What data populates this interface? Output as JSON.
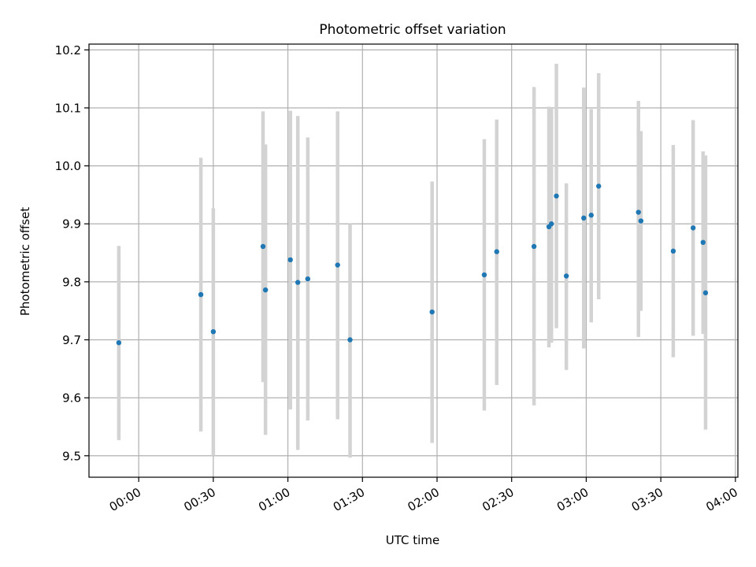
{
  "chart_data": {
    "type": "scatter",
    "title": "Photometric offset variation",
    "xlabel": "UTC time",
    "ylabel": "Photometric offset",
    "x_ticks": [
      "00:00",
      "00:30",
      "01:00",
      "01:30",
      "02:00",
      "02:30",
      "03:00",
      "03:30",
      "04:00"
    ],
    "x_tick_minutes": [
      0,
      30,
      60,
      90,
      120,
      150,
      180,
      210,
      240
    ],
    "y_ticks": [
      "9.5",
      "9.6",
      "9.7",
      "9.8",
      "9.9",
      "10.0",
      "10.1",
      "10.2"
    ],
    "y_tick_values": [
      9.5,
      9.6,
      9.7,
      9.8,
      9.9,
      10.0,
      10.1,
      10.2
    ],
    "xlim": [
      "23:40",
      "04:01"
    ],
    "ylim": [
      9.463,
      10.21
    ],
    "grid": true,
    "marker_color": "#1f77b4",
    "errorbar_color": "#d3d3d3",
    "points": [
      {
        "time": "23:52",
        "y": 9.695,
        "lo": 9.527,
        "hi": 9.862
      },
      {
        "time": "00:25",
        "y": 9.778,
        "lo": 9.542,
        "hi": 10.014
      },
      {
        "time": "00:30",
        "y": 9.714,
        "lo": 9.5,
        "hi": 9.927
      },
      {
        "time": "00:50",
        "y": 9.861,
        "lo": 9.627,
        "hi": 10.094
      },
      {
        "time": "00:51",
        "y": 9.786,
        "lo": 9.536,
        "hi": 10.037
      },
      {
        "time": "01:01",
        "y": 9.838,
        "lo": 9.58,
        "hi": 10.095
      },
      {
        "time": "01:04",
        "y": 9.799,
        "lo": 9.51,
        "hi": 10.086
      },
      {
        "time": "01:08",
        "y": 9.805,
        "lo": 9.561,
        "hi": 10.049
      },
      {
        "time": "01:20",
        "y": 9.829,
        "lo": 9.563,
        "hi": 10.094
      },
      {
        "time": "01:25",
        "y": 9.7,
        "lo": 9.497,
        "hi": 9.9
      },
      {
        "time": "01:58",
        "y": 9.748,
        "lo": 9.522,
        "hi": 9.973
      },
      {
        "time": "02:19",
        "y": 9.812,
        "lo": 9.578,
        "hi": 10.046
      },
      {
        "time": "02:24",
        "y": 9.852,
        "lo": 9.622,
        "hi": 10.08
      },
      {
        "time": "02:39",
        "y": 9.861,
        "lo": 9.587,
        "hi": 10.136
      },
      {
        "time": "02:45",
        "y": 9.895,
        "lo": 9.687,
        "hi": 10.102
      },
      {
        "time": "02:46",
        "y": 9.9,
        "lo": 9.695,
        "hi": 10.1
      },
      {
        "time": "02:48",
        "y": 9.948,
        "lo": 9.72,
        "hi": 10.176
      },
      {
        "time": "02:52",
        "y": 9.81,
        "lo": 9.648,
        "hi": 9.97
      },
      {
        "time": "02:59",
        "y": 9.91,
        "lo": 9.685,
        "hi": 10.135
      },
      {
        "time": "03:02",
        "y": 9.915,
        "lo": 9.73,
        "hi": 10.098
      },
      {
        "time": "03:05",
        "y": 9.965,
        "lo": 9.77,
        "hi": 10.16
      },
      {
        "time": "03:21",
        "y": 9.92,
        "lo": 9.705,
        "hi": 10.112
      },
      {
        "time": "03:22",
        "y": 9.905,
        "lo": 9.75,
        "hi": 10.06
      },
      {
        "time": "03:35",
        "y": 9.853,
        "lo": 9.67,
        "hi": 10.036
      },
      {
        "time": "03:43",
        "y": 9.893,
        "lo": 9.707,
        "hi": 10.079
      },
      {
        "time": "03:47",
        "y": 9.868,
        "lo": 9.71,
        "hi": 10.025
      },
      {
        "time": "03:48",
        "y": 9.781,
        "lo": 9.545,
        "hi": 10.018
      }
    ]
  }
}
